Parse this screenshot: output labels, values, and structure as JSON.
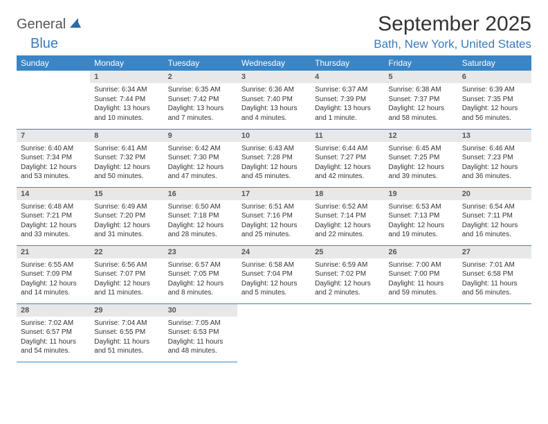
{
  "logo": {
    "word1": "General",
    "word2": "Blue"
  },
  "header": {
    "month_year": "September 2025",
    "location": "Bath, New York, United States"
  },
  "colors": {
    "header_bg": "#3a85c6",
    "header_text": "#ffffff",
    "daynum_bg": "#e8e8e8",
    "accent": "#3a7ab8",
    "border": "#3a85c6"
  },
  "weekdays": [
    "Sunday",
    "Monday",
    "Tuesday",
    "Wednesday",
    "Thursday",
    "Friday",
    "Saturday"
  ],
  "weeks": [
    [
      null,
      {
        "n": "1",
        "sunrise": "Sunrise: 6:34 AM",
        "sunset": "Sunset: 7:44 PM",
        "day1": "Daylight: 13 hours",
        "day2": "and 10 minutes."
      },
      {
        "n": "2",
        "sunrise": "Sunrise: 6:35 AM",
        "sunset": "Sunset: 7:42 PM",
        "day1": "Daylight: 13 hours",
        "day2": "and 7 minutes."
      },
      {
        "n": "3",
        "sunrise": "Sunrise: 6:36 AM",
        "sunset": "Sunset: 7:40 PM",
        "day1": "Daylight: 13 hours",
        "day2": "and 4 minutes."
      },
      {
        "n": "4",
        "sunrise": "Sunrise: 6:37 AM",
        "sunset": "Sunset: 7:39 PM",
        "day1": "Daylight: 13 hours",
        "day2": "and 1 minute."
      },
      {
        "n": "5",
        "sunrise": "Sunrise: 6:38 AM",
        "sunset": "Sunset: 7:37 PM",
        "day1": "Daylight: 12 hours",
        "day2": "and 58 minutes."
      },
      {
        "n": "6",
        "sunrise": "Sunrise: 6:39 AM",
        "sunset": "Sunset: 7:35 PM",
        "day1": "Daylight: 12 hours",
        "day2": "and 56 minutes."
      }
    ],
    [
      {
        "n": "7",
        "sunrise": "Sunrise: 6:40 AM",
        "sunset": "Sunset: 7:34 PM",
        "day1": "Daylight: 12 hours",
        "day2": "and 53 minutes."
      },
      {
        "n": "8",
        "sunrise": "Sunrise: 6:41 AM",
        "sunset": "Sunset: 7:32 PM",
        "day1": "Daylight: 12 hours",
        "day2": "and 50 minutes."
      },
      {
        "n": "9",
        "sunrise": "Sunrise: 6:42 AM",
        "sunset": "Sunset: 7:30 PM",
        "day1": "Daylight: 12 hours",
        "day2": "and 47 minutes."
      },
      {
        "n": "10",
        "sunrise": "Sunrise: 6:43 AM",
        "sunset": "Sunset: 7:28 PM",
        "day1": "Daylight: 12 hours",
        "day2": "and 45 minutes."
      },
      {
        "n": "11",
        "sunrise": "Sunrise: 6:44 AM",
        "sunset": "Sunset: 7:27 PM",
        "day1": "Daylight: 12 hours",
        "day2": "and 42 minutes."
      },
      {
        "n": "12",
        "sunrise": "Sunrise: 6:45 AM",
        "sunset": "Sunset: 7:25 PM",
        "day1": "Daylight: 12 hours",
        "day2": "and 39 minutes."
      },
      {
        "n": "13",
        "sunrise": "Sunrise: 6:46 AM",
        "sunset": "Sunset: 7:23 PM",
        "day1": "Daylight: 12 hours",
        "day2": "and 36 minutes."
      }
    ],
    [
      {
        "n": "14",
        "sunrise": "Sunrise: 6:48 AM",
        "sunset": "Sunset: 7:21 PM",
        "day1": "Daylight: 12 hours",
        "day2": "and 33 minutes."
      },
      {
        "n": "15",
        "sunrise": "Sunrise: 6:49 AM",
        "sunset": "Sunset: 7:20 PM",
        "day1": "Daylight: 12 hours",
        "day2": "and 31 minutes."
      },
      {
        "n": "16",
        "sunrise": "Sunrise: 6:50 AM",
        "sunset": "Sunset: 7:18 PM",
        "day1": "Daylight: 12 hours",
        "day2": "and 28 minutes."
      },
      {
        "n": "17",
        "sunrise": "Sunrise: 6:51 AM",
        "sunset": "Sunset: 7:16 PM",
        "day1": "Daylight: 12 hours",
        "day2": "and 25 minutes."
      },
      {
        "n": "18",
        "sunrise": "Sunrise: 6:52 AM",
        "sunset": "Sunset: 7:14 PM",
        "day1": "Daylight: 12 hours",
        "day2": "and 22 minutes."
      },
      {
        "n": "19",
        "sunrise": "Sunrise: 6:53 AM",
        "sunset": "Sunset: 7:13 PM",
        "day1": "Daylight: 12 hours",
        "day2": "and 19 minutes."
      },
      {
        "n": "20",
        "sunrise": "Sunrise: 6:54 AM",
        "sunset": "Sunset: 7:11 PM",
        "day1": "Daylight: 12 hours",
        "day2": "and 16 minutes."
      }
    ],
    [
      {
        "n": "21",
        "sunrise": "Sunrise: 6:55 AM",
        "sunset": "Sunset: 7:09 PM",
        "day1": "Daylight: 12 hours",
        "day2": "and 14 minutes."
      },
      {
        "n": "22",
        "sunrise": "Sunrise: 6:56 AM",
        "sunset": "Sunset: 7:07 PM",
        "day1": "Daylight: 12 hours",
        "day2": "and 11 minutes."
      },
      {
        "n": "23",
        "sunrise": "Sunrise: 6:57 AM",
        "sunset": "Sunset: 7:05 PM",
        "day1": "Daylight: 12 hours",
        "day2": "and 8 minutes."
      },
      {
        "n": "24",
        "sunrise": "Sunrise: 6:58 AM",
        "sunset": "Sunset: 7:04 PM",
        "day1": "Daylight: 12 hours",
        "day2": "and 5 minutes."
      },
      {
        "n": "25",
        "sunrise": "Sunrise: 6:59 AM",
        "sunset": "Sunset: 7:02 PM",
        "day1": "Daylight: 12 hours",
        "day2": "and 2 minutes."
      },
      {
        "n": "26",
        "sunrise": "Sunrise: 7:00 AM",
        "sunset": "Sunset: 7:00 PM",
        "day1": "Daylight: 11 hours",
        "day2": "and 59 minutes."
      },
      {
        "n": "27",
        "sunrise": "Sunrise: 7:01 AM",
        "sunset": "Sunset: 6:58 PM",
        "day1": "Daylight: 11 hours",
        "day2": "and 56 minutes."
      }
    ],
    [
      {
        "n": "28",
        "sunrise": "Sunrise: 7:02 AM",
        "sunset": "Sunset: 6:57 PM",
        "day1": "Daylight: 11 hours",
        "day2": "and 54 minutes."
      },
      {
        "n": "29",
        "sunrise": "Sunrise: 7:04 AM",
        "sunset": "Sunset: 6:55 PM",
        "day1": "Daylight: 11 hours",
        "day2": "and 51 minutes."
      },
      {
        "n": "30",
        "sunrise": "Sunrise: 7:05 AM",
        "sunset": "Sunset: 6:53 PM",
        "day1": "Daylight: 11 hours",
        "day2": "and 48 minutes."
      },
      null,
      null,
      null,
      null
    ]
  ]
}
